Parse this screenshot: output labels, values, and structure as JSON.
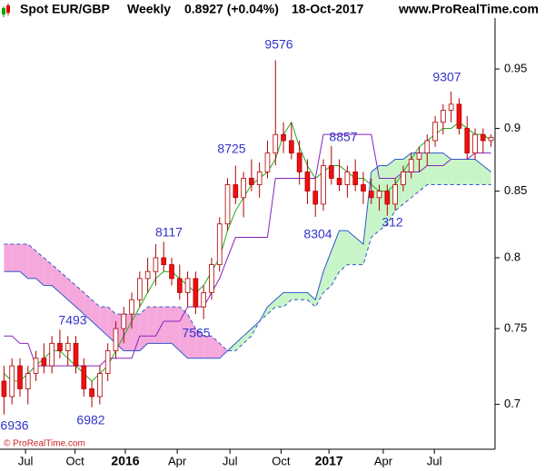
{
  "chart_data": {
    "type": "candlestick",
    "title": "Spot EUR/GBP",
    "period": "Weekly",
    "last_price": "0.8927 (+0.04%)",
    "date": "18-Oct-2017",
    "site": "www.ProRealTime.com",
    "copyright": "© ProRealTime.com",
    "log_scale": true,
    "up_color": "#ffffff",
    "down_color": "#ee1111",
    "candle_edge": "#b00000",
    "cloud_up_color": "#c8f5c8",
    "cloud_down_color": "#f5a8dc",
    "xlim": [
      -0.5,
      61.5
    ],
    "xticks": [
      {
        "value": 2.7,
        "label": "Jul"
      },
      {
        "value": 8.9,
        "label": "Oct"
      },
      {
        "value": 15.2,
        "label": "2016"
      },
      {
        "value": 21.7,
        "label": "Apr"
      },
      {
        "value": 28.3,
        "label": "Jul"
      },
      {
        "value": 34.7,
        "label": "Oct"
      },
      {
        "value": 40.7,
        "label": "2017"
      },
      {
        "value": 47.5,
        "label": "Apr"
      },
      {
        "value": 53.9,
        "label": "Jul"
      }
    ],
    "ylim": [
      0.672,
      0.995
    ],
    "yticks": [
      0.7,
      0.75,
      0.8,
      0.85,
      0.9,
      0.95
    ],
    "open": [
      0.715,
      0.705,
      0.725,
      0.71,
      0.72,
      0.73,
      0.725,
      0.74,
      0.735,
      0.74,
      0.725,
      0.71,
      0.705,
      0.72,
      0.735,
      0.75,
      0.76,
      0.77,
      0.785,
      0.79,
      0.8,
      0.795,
      0.785,
      0.775,
      0.785,
      0.765,
      0.775,
      0.795,
      0.825,
      0.855,
      0.845,
      0.86,
      0.855,
      0.865,
      0.88,
      0.895,
      0.89,
      0.88,
      0.865,
      0.85,
      0.84,
      0.87,
      0.86,
      0.855,
      0.865,
      0.855,
      0.85,
      0.845,
      0.85,
      0.84,
      0.855,
      0.865,
      0.875,
      0.88,
      0.89,
      0.905,
      0.915,
      0.92,
      0.9,
      0.88,
      0.895,
      0.89
    ],
    "high": [
      0.725,
      0.73,
      0.73,
      0.725,
      0.735,
      0.74,
      0.745,
      0.7493,
      0.745,
      0.745,
      0.73,
      0.715,
      0.725,
      0.74,
      0.755,
      0.765,
      0.775,
      0.79,
      0.8,
      0.81,
      0.8117,
      0.8,
      0.795,
      0.79,
      0.79,
      0.78,
      0.8,
      0.83,
      0.86,
      0.87,
      0.865,
      0.875,
      0.8725,
      0.89,
      0.9576,
      0.905,
      0.905,
      0.89,
      0.875,
      0.86,
      0.875,
      0.8857,
      0.875,
      0.87,
      0.875,
      0.865,
      0.86,
      0.855,
      0.855,
      0.86,
      0.87,
      0.88,
      0.885,
      0.895,
      0.91,
      0.92,
      0.9307,
      0.925,
      0.91,
      0.9,
      0.9,
      0.895
    ],
    "low": [
      0.6936,
      0.7,
      0.705,
      0.7,
      0.715,
      0.72,
      0.72,
      0.73,
      0.725,
      0.72,
      0.705,
      0.6982,
      0.7,
      0.715,
      0.73,
      0.74,
      0.75,
      0.765,
      0.775,
      0.78,
      0.79,
      0.78,
      0.77,
      0.765,
      0.76,
      0.7565,
      0.77,
      0.79,
      0.82,
      0.84,
      0.83,
      0.85,
      0.845,
      0.86,
      0.87,
      0.88,
      0.875,
      0.855,
      0.84,
      0.8304,
      0.835,
      0.855,
      0.85,
      0.845,
      0.85,
      0.84,
      0.84,
      0.835,
      0.8312,
      0.835,
      0.85,
      0.86,
      0.865,
      0.87,
      0.885,
      0.895,
      0.905,
      0.895,
      0.875,
      0.875,
      0.88,
      0.885
    ],
    "close": [
      0.705,
      0.725,
      0.71,
      0.72,
      0.73,
      0.725,
      0.74,
      0.735,
      0.74,
      0.725,
      0.71,
      0.705,
      0.72,
      0.735,
      0.75,
      0.76,
      0.77,
      0.785,
      0.79,
      0.8,
      0.795,
      0.785,
      0.775,
      0.785,
      0.765,
      0.775,
      0.795,
      0.825,
      0.855,
      0.845,
      0.86,
      0.855,
      0.865,
      0.88,
      0.895,
      0.89,
      0.88,
      0.865,
      0.85,
      0.84,
      0.87,
      0.86,
      0.855,
      0.865,
      0.855,
      0.85,
      0.845,
      0.85,
      0.84,
      0.855,
      0.865,
      0.875,
      0.88,
      0.89,
      0.905,
      0.915,
      0.92,
      0.9,
      0.88,
      0.895,
      0.89,
      0.8927
    ],
    "series": [
      {
        "color": "#22aa22",
        "values": [
          0.72,
          0.715,
          0.715,
          0.72,
          0.725,
          0.73,
          0.735,
          0.735,
          0.73,
          0.725,
          0.72,
          0.715,
          0.72,
          0.725,
          0.735,
          0.745,
          0.755,
          0.765,
          0.775,
          0.785,
          0.79,
          0.79,
          0.785,
          0.78,
          0.775,
          0.78,
          0.79,
          0.8,
          0.82,
          0.835,
          0.845,
          0.855,
          0.86,
          0.865,
          0.875,
          0.895,
          0.905,
          0.885,
          0.87,
          0.86,
          0.865,
          0.87,
          0.87,
          0.865,
          0.86,
          0.86,
          0.855,
          0.85,
          0.85,
          0.855,
          0.865,
          0.875,
          0.885,
          0.89,
          0.895,
          0.9,
          0.9,
          0.905,
          0.9,
          0.895,
          0.895,
          0.89
        ]
      },
      {
        "color": "#8822bb",
        "values": [
          0.745,
          0.745,
          0.74,
          0.74,
          0.725,
          0.725,
          0.725,
          0.725,
          0.725,
          0.725,
          0.725,
          0.725,
          0.725,
          0.73,
          0.73,
          0.73,
          0.73,
          0.745,
          0.745,
          0.745,
          0.755,
          0.755,
          0.755,
          0.765,
          0.765,
          0.765,
          0.775,
          0.785,
          0.8,
          0.815,
          0.815,
          0.815,
          0.815,
          0.815,
          0.86,
          0.86,
          0.86,
          0.86,
          0.86,
          0.86,
          0.895,
          0.895,
          0.895,
          0.895,
          0.895,
          0.895,
          0.895,
          0.86,
          0.86,
          0.86,
          0.865,
          0.865,
          0.865,
          0.87,
          0.87,
          0.87,
          0.875,
          0.875,
          0.875,
          0.88,
          0.88,
          0.88
        ]
      },
      {
        "color": "#3355cc",
        "values": [
          0.79,
          0.79,
          0.79,
          0.785,
          0.785,
          0.78,
          0.78,
          0.775,
          0.77,
          0.765,
          0.76,
          0.755,
          0.75,
          0.745,
          0.74,
          0.735,
          0.735,
          0.735,
          0.74,
          0.74,
          0.74,
          0.74,
          0.735,
          0.73,
          0.73,
          0.73,
          0.73,
          0.73,
          0.735,
          0.74,
          0.745,
          0.75,
          0.755,
          0.765,
          0.77,
          0.775,
          0.775,
          0.775,
          0.775,
          0.77,
          0.79,
          0.805,
          0.82,
          0.82,
          0.815,
          0.81,
          0.865,
          0.87,
          0.87,
          0.875,
          0.875,
          0.88,
          0.88,
          0.88,
          0.88,
          0.88,
          0.875,
          0.875,
          0.875,
          0.875,
          0.87,
          0.865
        ]
      },
      {
        "color": "#3355cc",
        "dashed": true,
        "values": [
          0.81,
          0.81,
          0.81,
          0.81,
          0.805,
          0.8,
          0.795,
          0.79,
          0.785,
          0.78,
          0.775,
          0.77,
          0.765,
          0.765,
          0.76,
          0.76,
          0.76,
          0.76,
          0.765,
          0.765,
          0.765,
          0.765,
          0.765,
          0.76,
          0.75,
          0.745,
          0.745,
          0.74,
          0.735,
          0.735,
          0.74,
          0.745,
          0.755,
          0.76,
          0.765,
          0.765,
          0.77,
          0.77,
          0.77,
          0.765,
          0.775,
          0.78,
          0.79,
          0.795,
          0.795,
          0.795,
          0.815,
          0.82,
          0.825,
          0.835,
          0.84,
          0.845,
          0.85,
          0.855,
          0.855,
          0.855,
          0.855,
          0.855,
          0.855,
          0.855,
          0.855,
          0.855
        ]
      }
    ],
    "annotations": [
      "6936",
      "7493",
      "6982",
      "8117",
      "7565",
      "8725",
      "9576",
      "8857",
      "8304",
      "312",
      "9307"
    ]
  }
}
